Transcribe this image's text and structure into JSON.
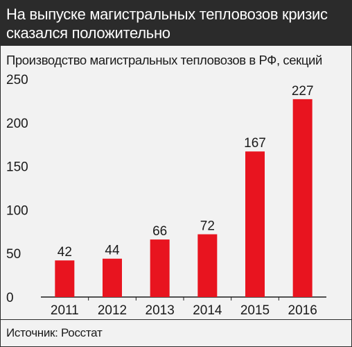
{
  "header": {
    "title": "На выпуске магистральных тепловозов кризис сказался положительно"
  },
  "chart_data": {
    "type": "bar",
    "title": "Производство магистральных тепловозов в РФ, секций",
    "categories": [
      "2011",
      "2012",
      "2013",
      "2014",
      "2015",
      "2016"
    ],
    "values": [
      42,
      44,
      66,
      72,
      167,
      227
    ],
    "data_labels": [
      "42",
      "44",
      "66",
      "72",
      "167",
      "227"
    ],
    "xlabel": "",
    "ylabel": "",
    "ylim": [
      0,
      250
    ],
    "yticks": [
      "0",
      "50",
      "100",
      "150",
      "200",
      "250"
    ],
    "grid": false,
    "bar_color": "#e8141f"
  },
  "footer": {
    "source": "Источник: Росстат"
  }
}
